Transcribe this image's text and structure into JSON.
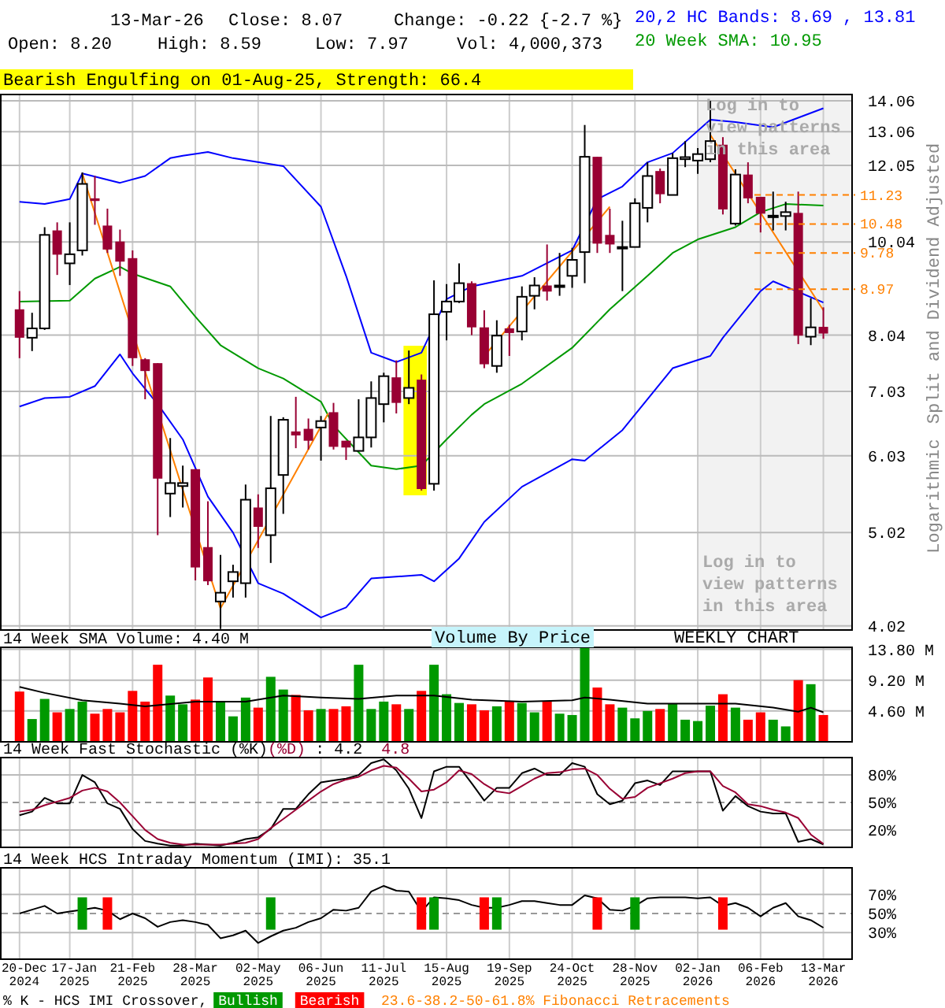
{
  "chart_data": [
    {
      "type": "candlestick",
      "subtitle": "Bearish Engulfing on 01-Aug-25, Strength: 66.4",
      "ylabel": "Split and Dividend Adjusted",
      "annotations": [
        "13-Mar-26",
        "Close: 8.07",
        "Change: -0.22 {-2.7 %}",
        "Open: 8.20",
        "High: 8.59",
        "Low: 7.97",
        "Vol: 4,000,373",
        "Log in to view patterns in this area",
        "Logarithmic"
      ],
      "x": [
        "2024-12-20",
        "2024-12-27",
        "2025-01-03",
        "2025-01-10",
        "2025-01-17",
        "2025-01-24",
        "2025-01-31",
        "2025-02-07",
        "2025-02-14",
        "2025-02-21",
        "2025-02-28",
        "2025-03-07",
        "2025-03-14",
        "2025-03-21",
        "2025-03-28",
        "2025-04-04",
        "2025-04-11",
        "2025-04-18",
        "2025-04-25",
        "2025-05-02",
        "2025-05-09",
        "2025-05-16",
        "2025-05-23",
        "2025-05-30",
        "2025-06-06",
        "2025-06-13",
        "2025-06-20",
        "2025-06-27",
        "2025-07-04",
        "2025-07-11",
        "2025-07-18",
        "2025-07-25",
        "2025-08-01",
        "2025-08-08",
        "2025-08-15",
        "2025-08-22",
        "2025-08-29",
        "2025-09-05",
        "2025-09-12",
        "2025-09-19",
        "2025-09-26",
        "2025-10-03",
        "2025-10-10",
        "2025-10-17",
        "2025-10-24",
        "2025-10-31",
        "2025-11-07",
        "2025-11-14",
        "2025-11-21",
        "2025-11-28",
        "2025-12-05",
        "2025-12-12",
        "2025-12-19",
        "2025-12-26",
        "2026-01-02",
        "2026-01-09",
        "2026-01-16",
        "2026-01-23",
        "2026-01-30",
        "2026-02-06",
        "2026-02-13",
        "2026-02-20",
        "2026-02-27",
        "2026-03-06",
        "2026-03-13"
      ],
      "ohlc": [
        [
          8.55,
          8.93,
          7.61,
          7.99
        ],
        [
          7.99,
          8.48,
          7.74,
          8.17
        ],
        [
          8.17,
          10.4,
          8.14,
          10.21
        ],
        [
          10.32,
          10.52,
          9.28,
          9.74
        ],
        [
          9.54,
          10.52,
          9.06,
          9.75
        ],
        [
          9.84,
          11.85,
          9.72,
          11.53
        ],
        [
          11.14,
          11.75,
          10.46,
          11.07
        ],
        [
          10.44,
          10.87,
          9.78,
          9.86
        ],
        [
          10.05,
          10.34,
          9.26,
          9.58
        ],
        [
          9.66,
          9.84,
          7.47,
          7.61
        ],
        [
          7.59,
          7.61,
          6.9,
          7.38
        ],
        [
          7.52,
          7.52,
          4.99,
          5.71
        ],
        [
          5.51,
          6.29,
          5.21,
          5.65
        ],
        [
          5.61,
          5.89,
          5.33,
          5.65
        ],
        [
          5.84,
          5.84,
          4.48,
          4.62
        ],
        [
          4.85,
          5.41,
          4.43,
          4.47
        ],
        [
          4.26,
          4.76,
          3.99,
          4.35
        ],
        [
          4.47,
          4.65,
          4.3,
          4.57
        ],
        [
          4.45,
          5.63,
          4.3,
          5.43
        ],
        [
          5.33,
          5.5,
          4.84,
          5.09
        ],
        [
          4.99,
          6.63,
          4.67,
          5.58
        ],
        [
          5.76,
          6.61,
          5.25,
          6.57
        ],
        [
          6.39,
          6.94,
          6.14,
          6.33
        ],
        [
          6.43,
          6.59,
          6.12,
          6.25
        ],
        [
          6.45,
          6.63,
          5.96,
          6.55
        ],
        [
          6.69,
          6.84,
          6.12,
          6.16
        ],
        [
          6.25,
          6.25,
          5.97,
          6.15
        ],
        [
          6.1,
          6.9,
          6.1,
          6.3
        ],
        [
          6.3,
          7.2,
          6.15,
          6.92
        ],
        [
          6.82,
          7.35,
          6.53,
          7.29
        ],
        [
          7.27,
          7.57,
          6.67,
          6.84
        ],
        [
          6.92,
          7.75,
          6.82,
          7.09
        ],
        [
          7.23,
          7.32,
          5.55,
          5.57
        ],
        [
          5.64,
          9.16,
          5.55,
          8.45
        ],
        [
          8.5,
          9.08,
          7.94,
          8.71
        ],
        [
          8.71,
          9.54,
          8.68,
          9.1
        ],
        [
          9.1,
          9.14,
          8.04,
          8.19
        ],
        [
          8.19,
          8.53,
          7.43,
          7.5
        ],
        [
          7.47,
          8.33,
          7.35,
          8.03
        ],
        [
          8.17,
          8.24,
          7.65,
          8.08
        ],
        [
          8.11,
          9.03,
          7.94,
          8.81
        ],
        [
          8.83,
          9.23,
          8.55,
          9.05
        ],
        [
          9.05,
          9.98,
          8.73,
          8.92
        ],
        [
          9.03,
          9.78,
          8.83,
          9.05
        ],
        [
          9.26,
          9.9,
          9.0,
          9.62
        ],
        [
          9.8,
          13.27,
          9.1,
          12.3
        ],
        [
          12.3,
          12.3,
          9.78,
          10.0
        ],
        [
          10.21,
          10.87,
          9.78,
          9.98
        ],
        [
          9.92,
          10.56,
          8.93,
          9.92
        ],
        [
          9.92,
          11.14,
          9.92,
          11.01
        ],
        [
          10.89,
          12.14,
          10.52,
          11.75
        ],
        [
          11.89,
          11.96,
          11.01,
          11.25
        ],
        [
          11.23,
          12.41,
          11.23,
          12.26
        ],
        [
          12.23,
          12.77,
          12.0,
          12.29
        ],
        [
          12.19,
          12.56,
          11.81,
          12.38
        ],
        [
          12.23,
          14.06,
          12.14,
          12.77
        ],
        [
          12.66,
          12.89,
          10.72,
          10.85
        ],
        [
          10.49,
          11.94,
          10.44,
          11.79
        ],
        [
          11.79,
          12.14,
          11.01,
          11.14
        ],
        [
          11.18,
          11.18,
          10.27,
          10.74
        ],
        [
          10.68,
          11.32,
          10.32,
          10.69
        ],
        [
          10.68,
          11.05,
          10.32,
          10.78
        ],
        [
          10.76,
          11.32,
          7.87,
          8.03
        ],
        [
          8.01,
          8.78,
          7.85,
          8.19
        ],
        [
          8.2,
          8.59,
          7.97,
          8.07
        ]
      ],
      "series": [
        {
          "name": "20,2 HC Bands: 8.69 , 13.81",
          "type": "line",
          "color": "#0000ff",
          "x": [
            "2024-12-20",
            "2025-01-03",
            "2025-01-17",
            "2025-01-24",
            "2025-02-14",
            "2025-02-28",
            "2025-03-14",
            "2025-03-21",
            "2025-04-04",
            "2025-04-18",
            "2025-05-16",
            "2025-06-06",
            "2025-06-20",
            "2025-07-04",
            "2025-07-18",
            "2025-08-01",
            "2025-08-15",
            "2025-08-29",
            "2025-09-26",
            "2025-10-24",
            "2025-11-07",
            "2025-11-21",
            "2025-12-05",
            "2025-12-19",
            "2026-01-09",
            "2026-01-23",
            "2026-02-13",
            "2026-03-13"
          ],
          "values": [
            11.05,
            10.99,
            11.12,
            11.82,
            11.56,
            11.75,
            12.26,
            12.33,
            12.44,
            12.26,
            12.03,
            10.92,
            9.26,
            7.71,
            7.54,
            7.71,
            8.76,
            9.03,
            9.26,
            9.84,
            11.12,
            11.46,
            12.14,
            12.41,
            13.44,
            13.36,
            13.2,
            13.81
          ]
        },
        {
          "type": "line",
          "color": "#0000ff",
          "x": [
            "2024-12-20",
            "2025-01-03",
            "2025-01-17",
            "2025-01-31",
            "2025-02-14",
            "2025-02-21",
            "2025-03-07",
            "2025-03-21",
            "2025-04-04",
            "2025-04-18",
            "2025-05-02",
            "2025-05-16",
            "2025-06-06",
            "2025-06-20",
            "2025-07-04",
            "2025-08-01",
            "2025-08-08",
            "2025-08-22",
            "2025-09-05",
            "2025-09-26",
            "2025-10-24",
            "2025-10-31",
            "2025-11-21",
            "2025-12-19",
            "2026-01-09",
            "2026-01-16",
            "2026-02-06",
            "2026-02-13",
            "2026-03-13"
          ],
          "values": [
            6.78,
            6.92,
            6.94,
            7.12,
            7.68,
            7.34,
            6.82,
            6.27,
            5.47,
            5.02,
            4.45,
            4.34,
            4.1,
            4.2,
            4.5,
            4.54,
            4.47,
            4.72,
            5.15,
            5.6,
            5.98,
            5.96,
            6.41,
            7.43,
            7.65,
            7.99,
            8.93,
            9.14,
            8.69
          ]
        },
        {
          "name": "20 Week SMA: 10.95",
          "type": "line",
          "color": "#009900",
          "x": [
            "2024-12-20",
            "2025-01-17",
            "2025-01-31",
            "2025-02-14",
            "2025-02-21",
            "2025-03-14",
            "2025-03-28",
            "2025-04-11",
            "2025-05-02",
            "2025-05-16",
            "2025-06-06",
            "2025-06-13",
            "2025-07-04",
            "2025-07-18",
            "2025-08-01",
            "2025-08-15",
            "2025-08-29",
            "2025-09-05",
            "2025-09-26",
            "2025-10-24",
            "2025-11-14",
            "2025-12-05",
            "2025-12-19",
            "2026-01-02",
            "2026-01-23",
            "2026-02-06",
            "2026-02-20",
            "2026-03-13"
          ],
          "values": [
            8.71,
            8.73,
            9.2,
            9.46,
            9.31,
            9.03,
            8.4,
            7.85,
            7.43,
            7.25,
            6.86,
            6.48,
            5.89,
            5.84,
            5.89,
            6.27,
            6.65,
            6.82,
            7.16,
            7.8,
            8.55,
            9.26,
            9.78,
            10.1,
            10.4,
            10.78,
            10.99,
            10.95
          ]
        },
        {
          "type": "line",
          "color": "#ff8000",
          "x": [
            "2025-01-24",
            "2025-04-11",
            "2025-06-10",
            "2025-07-18",
            "2025-09-05",
            "2025-11-14",
            "2025-12-12",
            "2026-01-09",
            "2026-03-13"
          ],
          "values": [
            11.82,
            4.19,
            6.67,
            null,
            7.65,
            10.92,
            null,
            12.96,
            8.53
          ]
        }
      ],
      "bands": [
        {
          "axis": "x",
          "from": "2026-01-02",
          "to": "2026-03-29",
          "label": "Log in to view patterns in this area",
          "color": "#f2f2f2"
        },
        {
          "axis": "x",
          "from": "2025-07-22",
          "to": "2025-08-04",
          "color": "#ffff00"
        }
      ],
      "ref_lines": [
        {
          "axis": "y",
          "value": 11.23,
          "label": "11.23",
          "color": "#ff8000",
          "line_style": "dashed"
        },
        {
          "axis": "y",
          "value": 10.48,
          "label": "10.48",
          "color": "#ff8000",
          "line_style": "dashed"
        },
        {
          "axis": "y",
          "value": 9.78,
          "label": "9.78",
          "color": "#ff8000",
          "line_style": "dashed"
        },
        {
          "axis": "y",
          "value": 8.97,
          "label": "8.97",
          "color": "#ff8000",
          "line_style": "dashed"
        }
      ],
      "log": true,
      "xlim": [
        "2024-12-10",
        "2026-03-29"
      ],
      "ylim": [
        3.98,
        14.27
      ],
      "yticks": [
        14.06,
        13.06,
        12.05,
        10.04,
        8.04,
        7.03,
        6.03,
        5.02,
        4.02
      ],
      "xticks": [
        {
          "value": "2024-12-20",
          "label": null
        },
        {
          "value": "2025-01-17",
          "label": null
        },
        {
          "value": "2025-02-21",
          "label": null
        },
        {
          "value": "2025-03-28",
          "label": null
        },
        {
          "value": "2025-05-02",
          "label": null
        },
        {
          "value": "2025-06-06",
          "label": null
        },
        {
          "value": "2025-07-11",
          "label": null
        },
        {
          "value": "2025-08-15",
          "label": null
        },
        {
          "value": "2025-09-19",
          "label": null
        },
        {
          "value": "2025-10-24",
          "label": null
        },
        {
          "value": "2025-11-28",
          "label": null
        },
        {
          "value": "2026-01-02",
          "label": null
        },
        {
          "value": "2026-02-06",
          "label": null
        },
        {
          "value": "2026-03-13",
          "label": null
        }
      ],
      "grid": true,
      "legend": "top right",
      "tick_labels": "y"
    },
    {
      "type": "bar",
      "title": "14 Week SMA Volume: 4.40 M",
      "annotations": [
        "Volume By Price",
        "WEEKLY CHART"
      ],
      "x": [
        "2024-12-20",
        "2024-12-27",
        "2025-01-03",
        "2025-01-10",
        "2025-01-17",
        "2025-01-24",
        "2025-01-31",
        "2025-02-07",
        "2025-02-14",
        "2025-02-21",
        "2025-02-28",
        "2025-03-07",
        "2025-03-14",
        "2025-03-21",
        "2025-03-28",
        "2025-04-04",
        "2025-04-11",
        "2025-04-18",
        "2025-04-25",
        "2025-05-02",
        "2025-05-09",
        "2025-05-16",
        "2025-05-23",
        "2025-05-30",
        "2025-06-06",
        "2025-06-13",
        "2025-06-20",
        "2025-06-27",
        "2025-07-04",
        "2025-07-11",
        "2025-07-18",
        "2025-07-25",
        "2025-08-01",
        "2025-08-08",
        "2025-08-15",
        "2025-08-22",
        "2025-08-29",
        "2025-09-05",
        "2025-09-12",
        "2025-09-19",
        "2025-09-26",
        "2025-10-03",
        "2025-10-10",
        "2025-10-17",
        "2025-10-24",
        "2025-10-31",
        "2025-11-07",
        "2025-11-14",
        "2025-11-21",
        "2025-11-28",
        "2025-12-05",
        "2025-12-12",
        "2025-12-19",
        "2025-12-26",
        "2026-01-02",
        "2026-01-09",
        "2026-01-16",
        "2026-01-23",
        "2026-01-30",
        "2026-02-06",
        "2026-02-13",
        "2026-02-20",
        "2026-02-27",
        "2026-03-06",
        "2026-03-13"
      ],
      "series": [
        {
          "type": "bar",
          "values": [
            7.5,
            3.4,
            6.4,
            4.4,
            4.9,
            6.0,
            4.2,
            4.9,
            4.4,
            7.6,
            6.0,
            11.5,
            6.9,
            5.6,
            6.3,
            9.6,
            6.0,
            3.8,
            6.6,
            5.1,
            9.7,
            7.8,
            7.0,
            4.7,
            4.9,
            4.9,
            5.3,
            11.5,
            4.9,
            6.0,
            5.6,
            4.9,
            7.6,
            11.5,
            7.1,
            5.8,
            5.6,
            4.7,
            5.3,
            6.0,
            5.8,
            4.4,
            6.0,
            4.2,
            4.0,
            14.0,
            8.1,
            5.6,
            5.1,
            3.5,
            4.6,
            4.9,
            5.7,
            3.3,
            3.1,
            5.4,
            7.1,
            5.1,
            3.3,
            4.4,
            3.3,
            2.3,
            9.2,
            8.6,
            4.0
          ],
          "colors": [
            "#ff0000",
            "#009900",
            "#009900",
            "#ff0000",
            "#009900",
            "#009900",
            "#ff0000",
            "#ff0000",
            "#ff0000",
            "#ff0000",
            "#ff0000",
            "#ff0000",
            "#009900",
            "#009900",
            "#ff0000",
            "#ff0000",
            "#009900",
            "#009900",
            "#009900",
            "#ff0000",
            "#009900",
            "#009900",
            "#ff0000",
            "#ff0000",
            "#009900",
            "#ff0000",
            "#ff0000",
            "#009900",
            "#009900",
            "#009900",
            "#ff0000",
            "#009900",
            "#ff0000",
            "#009900",
            "#009900",
            "#009900",
            "#ff0000",
            "#ff0000",
            "#009900",
            "#ff0000",
            "#009900",
            "#009900",
            "#ff0000",
            "#009900",
            "#009900",
            "#009900",
            "#ff0000",
            "#ff0000",
            "#009900",
            "#009900",
            "#009900",
            "#ff0000",
            "#009900",
            "#009900",
            "#009900",
            "#009900",
            "#ff0000",
            "#009900",
            "#ff0000",
            "#ff0000",
            "#009900",
            "#009900",
            "#ff0000",
            "#009900",
            "#ff0000"
          ]
        },
        {
          "type": "line",
          "color": "#000000",
          "x": [
            "2024-12-20",
            "2025-01-03",
            "2025-01-24",
            "2025-02-14",
            "2025-02-28",
            "2025-03-28",
            "2025-04-25",
            "2025-05-16",
            "2025-06-06",
            "2025-06-27",
            "2025-07-18",
            "2025-08-08",
            "2025-08-29",
            "2025-09-26",
            "2025-10-24",
            "2025-10-31",
            "2025-11-14",
            "2025-12-05",
            "2026-01-02",
            "2026-01-23",
            "2026-02-13",
            "2026-02-27",
            "2026-03-06",
            "2026-03-13"
          ],
          "values": [
            8.2,
            7.3,
            6.2,
            5.7,
            5.3,
            6.0,
            6.0,
            6.9,
            6.6,
            6.4,
            6.9,
            6.9,
            6.3,
            6.0,
            6.2,
            6.6,
            6.3,
            5.7,
            5.7,
            5.7,
            5.1,
            4.5,
            5.1,
            4.4
          ]
        }
      ],
      "xlim": [
        "2024-12-10",
        "2026-03-29"
      ],
      "ylim": [
        0,
        14.1
      ],
      "yticks": [
        {
          "value": 13.8,
          "label": "13.80 M"
        },
        {
          "value": 9.2,
          "label": "9.20 M"
        },
        {
          "value": 4.6,
          "label": "4.60 M"
        }
      ],
      "xticks": [
        {
          "value": "2024-12-20",
          "label": null
        },
        {
          "value": "2025-01-17",
          "label": null
        },
        {
          "value": "2025-02-21",
          "label": null
        },
        {
          "value": "2025-03-28",
          "label": null
        },
        {
          "value": "2025-05-02",
          "label": null
        },
        {
          "value": "2025-06-06",
          "label": null
        },
        {
          "value": "2025-07-11",
          "label": null
        },
        {
          "value": "2025-08-15",
          "label": null
        },
        {
          "value": "2025-09-19",
          "label": null
        },
        {
          "value": "2025-10-24",
          "label": null
        },
        {
          "value": "2025-11-28",
          "label": null
        },
        {
          "value": "2026-01-02",
          "label": null
        },
        {
          "value": "2026-02-06",
          "label": null
        },
        {
          "value": "2026-03-13",
          "label": null
        }
      ],
      "grid": true,
      "tick_labels": "y"
    },
    {
      "type": "line",
      "title": "14 Week Fast Stochastic",
      "annotations": [
        ": 4.2",
        "4.8"
      ],
      "x": [
        "2024-12-20",
        "2024-12-27",
        "2025-01-03",
        "2025-01-10",
        "2025-01-17",
        "2025-01-24",
        "2025-01-31",
        "2025-02-07",
        "2025-02-14",
        "2025-02-21",
        "2025-02-28",
        "2025-03-07",
        "2025-03-14",
        "2025-03-21",
        "2025-03-28",
        "2025-04-04",
        "2025-04-11",
        "2025-04-18",
        "2025-04-25",
        "2025-05-02",
        "2025-05-09",
        "2025-05-16",
        "2025-05-23",
        "2025-05-30",
        "2025-06-06",
        "2025-06-13",
        "2025-06-20",
        "2025-06-27",
        "2025-07-04",
        "2025-07-11",
        "2025-07-18",
        "2025-07-25",
        "2025-08-01",
        "2025-08-08",
        "2025-08-15",
        "2025-08-22",
        "2025-08-29",
        "2025-09-05",
        "2025-09-12",
        "2025-09-19",
        "2025-09-26",
        "2025-10-03",
        "2025-10-10",
        "2025-10-17",
        "2025-10-24",
        "2025-10-31",
        "2025-11-07",
        "2025-11-14",
        "2025-11-21",
        "2025-11-28",
        "2025-12-05",
        "2025-12-12",
        "2025-12-19",
        "2025-12-26",
        "2026-01-02",
        "2026-01-09",
        "2026-01-16",
        "2026-01-23",
        "2026-01-30",
        "2026-02-06",
        "2026-02-13",
        "2026-02-20",
        "2026-02-27",
        "2026-03-06",
        "2026-03-13"
      ],
      "series": [
        {
          "name": "(%K)",
          "color": "#000000",
          "values": [
            36,
            40,
            55,
            49,
            49,
            80,
            72,
            49,
            43,
            21,
            8,
            5,
            3,
            3,
            5,
            4,
            3,
            6,
            10,
            12,
            21,
            43,
            43,
            59,
            72,
            74,
            76,
            80,
            93,
            97,
            85,
            65,
            33,
            84,
            89,
            89,
            71,
            52,
            66,
            66,
            82,
            87,
            80,
            80,
            93,
            89,
            59,
            48,
            52,
            71,
            74,
            69,
            84,
            84,
            84,
            84,
            41,
            57,
            46,
            40,
            38,
            38,
            7,
            10,
            4.2
          ]
        },
        {
          "name": "(%D)",
          "color": "#990033",
          "values": [
            40,
            42,
            47,
            51,
            55,
            63,
            66,
            62,
            50,
            35,
            20,
            10,
            6,
            4,
            4,
            4,
            4,
            5,
            6,
            10,
            22,
            32,
            42,
            52,
            62,
            70,
            75,
            78,
            85,
            90,
            88,
            76,
            62,
            64,
            72,
            85,
            81,
            70,
            62,
            60,
            68,
            76,
            82,
            83,
            86,
            87,
            80,
            65,
            54,
            56,
            66,
            71,
            76,
            82,
            84,
            84,
            68,
            61,
            48,
            46,
            42,
            39,
            33,
            15,
            4.8
          ]
        }
      ],
      "ref_lines": [
        {
          "axis": "y",
          "value": 50,
          "color": "#999999",
          "line_style": "dashed"
        }
      ],
      "xlim": [
        "2024-12-10",
        "2026-03-29"
      ],
      "ylim": [
        1,
        99
      ],
      "yticks": [
        {
          "value": 20,
          "label": "20%"
        },
        {
          "value": 50,
          "label": "50%"
        },
        {
          "value": 80,
          "label": "80%"
        }
      ],
      "xticks": [
        {
          "value": "2024-12-20",
          "label": null
        },
        {
          "value": "2025-01-17",
          "label": null
        },
        {
          "value": "2025-02-21",
          "label": null
        },
        {
          "value": "2025-03-28",
          "label": null
        },
        {
          "value": "2025-05-02",
          "label": null
        },
        {
          "value": "2025-06-06",
          "label": null
        },
        {
          "value": "2025-07-11",
          "label": null
        },
        {
          "value": "2025-08-15",
          "label": null
        },
        {
          "value": "2025-09-19",
          "label": null
        },
        {
          "value": "2025-10-24",
          "label": null
        },
        {
          "value": "2025-11-28",
          "label": null
        },
        {
          "value": "2026-01-02",
          "label": null
        },
        {
          "value": "2026-02-06",
          "label": null
        },
        {
          "value": "2026-03-13",
          "label": null
        }
      ],
      "grid": true,
      "legend": "top left",
      "tick_labels": "y"
    },
    {
      "type": "line",
      "title": "14 Week HCS Intraday Momentum (IMI): 35.1",
      "legend_title": "% K - HCS IMI Crossover,",
      "annotations": [
        "23.6-38.2-50-61.8% Fibonacci Retracements"
      ],
      "x": [
        "2024-12-20",
        "2024-12-27",
        "2025-01-03",
        "2025-01-10",
        "2025-01-17",
        "2025-01-24",
        "2025-01-31",
        "2025-02-07",
        "2025-02-14",
        "2025-02-21",
        "2025-02-28",
        "2025-03-07",
        "2025-03-14",
        "2025-03-21",
        "2025-03-28",
        "2025-04-04",
        "2025-04-11",
        "2025-04-18",
        "2025-04-25",
        "2025-05-02",
        "2025-05-09",
        "2025-05-16",
        "2025-05-23",
        "2025-05-30",
        "2025-06-06",
        "2025-06-13",
        "2025-06-20",
        "2025-06-27",
        "2025-07-04",
        "2025-07-11",
        "2025-07-18",
        "2025-07-25",
        "2025-08-01",
        "2025-08-08",
        "2025-08-15",
        "2025-08-22",
        "2025-08-29",
        "2025-09-05",
        "2025-09-12",
        "2025-09-19",
        "2025-09-26",
        "2025-10-03",
        "2025-10-10",
        "2025-10-17",
        "2025-10-24",
        "2025-10-31",
        "2025-11-07",
        "2025-11-14",
        "2025-11-21",
        "2025-11-28",
        "2025-12-05",
        "2025-12-12",
        "2025-12-19",
        "2025-12-26",
        "2026-01-02",
        "2026-01-09",
        "2026-01-16",
        "2026-01-23",
        "2026-01-30",
        "2026-02-06",
        "2026-02-13",
        "2026-02-20",
        "2026-02-27",
        "2026-03-06",
        "2026-03-13"
      ],
      "series": [
        {
          "type": "line",
          "color": "#000000",
          "values": [
            50,
            54,
            58,
            50,
            52,
            54,
            56,
            53,
            44,
            50,
            45,
            36,
            41,
            43,
            41,
            38,
            24,
            27,
            32,
            19,
            26,
            32,
            35,
            41,
            45,
            54,
            53,
            56,
            73,
            79,
            74,
            73,
            52,
            67,
            66,
            64,
            59,
            56,
            56,
            59,
            63,
            63,
            61,
            59,
            59,
            69,
            66,
            54,
            53,
            58,
            66,
            67,
            67,
            67,
            66,
            67,
            58,
            61,
            56,
            47,
            56,
            61,
            47,
            43,
            35.1
          ]
        },
        {
          "name": "Bullish",
          "type": "bar",
          "color": "#009900",
          "x": [
            "2025-01-24",
            "2025-05-09",
            "2025-08-08",
            "2025-09-12",
            "2025-11-28"
          ],
          "base": [
            33,
            33,
            33,
            33,
            33
          ],
          "values": [
            34,
            34,
            34,
            34,
            34
          ]
        },
        {
          "name": "Bearish",
          "type": "bar",
          "color": "#ff0000",
          "x": [
            "2025-02-07",
            "2025-08-01",
            "2025-09-05",
            "2025-11-07",
            "2026-01-16"
          ],
          "base": [
            33,
            33,
            33,
            33,
            33
          ],
          "values": [
            34,
            34,
            34,
            34,
            34
          ]
        }
      ],
      "ref_lines": [
        {
          "axis": "y",
          "value": 50,
          "color": "#999999",
          "line_style": "dashed"
        }
      ],
      "xlim": [
        "2024-12-10",
        "2026-03-29"
      ],
      "ylim": [
        2,
        98
      ],
      "yticks": [
        {
          "value": 30,
          "label": "30%"
        },
        {
          "value": 50,
          "label": "50%"
        },
        {
          "value": 70,
          "label": "70%"
        }
      ],
      "xticks": [
        {
          "value": "2024-12-20",
          "label": "20-Dec 2024"
        },
        {
          "value": "2025-01-17",
          "label": "17-Jan 2025"
        },
        {
          "value": "2025-02-21",
          "label": "21-Feb 2025"
        },
        {
          "value": "2025-03-28",
          "label": "28-Mar 2025"
        },
        {
          "value": "2025-05-02",
          "label": "02-May 2025"
        },
        {
          "value": "2025-06-06",
          "label": "06-Jun 2025"
        },
        {
          "value": "2025-07-11",
          "label": "11-Jul 2025"
        },
        {
          "value": "2025-08-15",
          "label": "15-Aug 2025"
        },
        {
          "value": "2025-09-19",
          "label": "19-Sep 2025"
        },
        {
          "value": "2025-10-24",
          "label": "24-Oct 2025"
        },
        {
          "value": "2025-11-28",
          "label": "28-Nov 2025"
        },
        {
          "value": "2026-01-02",
          "label": "02-Jan 2026"
        },
        {
          "value": "2026-02-06",
          "label": "06-Feb 2026"
        },
        {
          "value": "2026-03-13",
          "label": "13-Mar 2026"
        }
      ],
      "grid": true,
      "legend": "bottom left"
    }
  ]
}
